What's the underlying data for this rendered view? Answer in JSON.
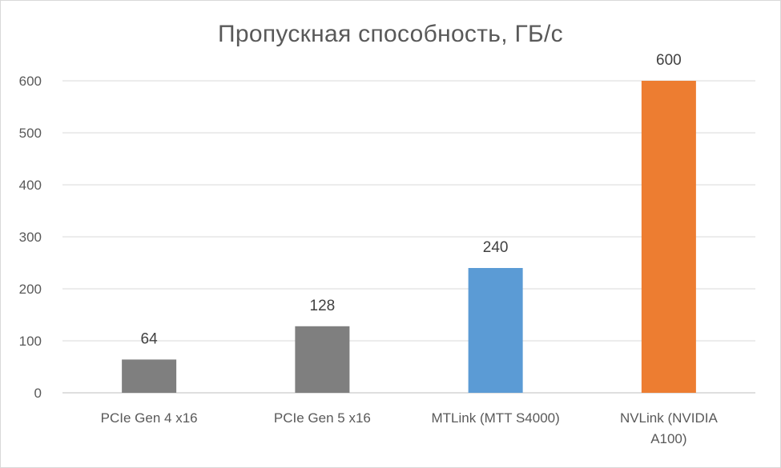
{
  "chart_data": {
    "type": "bar",
    "title": "Пропускная способность, ГБ/с",
    "categories": [
      [
        "PCIe Gen 4 x16"
      ],
      [
        "PCIe Gen 5 x16"
      ],
      [
        "MTLink (MTT S4000)"
      ],
      [
        "NVLink (NVIDIA",
        "A100)"
      ]
    ],
    "values": [
      64,
      128,
      240,
      600
    ],
    "bar_colors": [
      "#7f7f7f",
      "#7f7f7f",
      "#5b9bd5",
      "#ed7d31"
    ],
    "ylim": [
      0,
      600
    ],
    "yticks": [
      0,
      100,
      200,
      300,
      400,
      500,
      600
    ],
    "data_labels": true,
    "grid": true,
    "xlabel": "",
    "ylabel": ""
  }
}
